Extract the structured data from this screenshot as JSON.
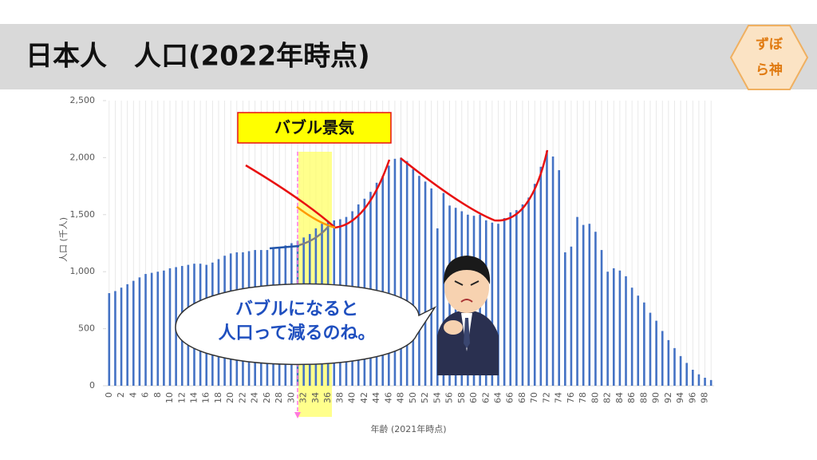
{
  "header": {
    "title": "日本人　人口(2022年時点)",
    "logo": [
      "ずぼ",
      "ら神"
    ]
  },
  "chart_data": {
    "type": "bar",
    "color": "#4472c4",
    "categories": [
      "0",
      null,
      "2",
      null,
      "4",
      null,
      "6",
      null,
      "8",
      null,
      "10",
      null,
      "12",
      null,
      "14",
      null,
      "16",
      null,
      "18",
      null,
      "20",
      null,
      "22",
      null,
      "24",
      null,
      "26",
      null,
      "28",
      null,
      "30",
      null,
      "32",
      null,
      "34",
      null,
      "36",
      null,
      "38",
      null,
      "40",
      null,
      "42",
      null,
      "44",
      null,
      "46",
      null,
      "48",
      null,
      "50",
      null,
      "52",
      null,
      "54",
      null,
      "56",
      null,
      "58",
      null,
      "60",
      null,
      "62",
      null,
      "64",
      null,
      "66",
      null,
      "68",
      null,
      "70",
      null,
      "72",
      null,
      "74",
      null,
      "76",
      null,
      "78",
      null,
      "80",
      null,
      "82",
      null,
      "84",
      null,
      "86",
      null,
      "88",
      null,
      "90",
      null,
      "92",
      null,
      "94",
      null,
      "96",
      null,
      "98",
      null
    ],
    "values": [
      812,
      830,
      860,
      890,
      920,
      950,
      980,
      990,
      1000,
      1010,
      1030,
      1040,
      1050,
      1060,
      1070,
      1070,
      1060,
      1080,
      1110,
      1140,
      1160,
      1170,
      1170,
      1180,
      1190,
      1190,
      1190,
      1200,
      1210,
      1230,
      1250,
      1270,
      1300,
      1330,
      1380,
      1420,
      1440,
      1450,
      1460,
      1480,
      1530,
      1590,
      1640,
      1700,
      1780,
      1840,
      1930,
      1990,
      2000,
      1970,
      1900,
      1840,
      1790,
      1730,
      1380,
      1690,
      1580,
      1560,
      1530,
      1500,
      1490,
      1500,
      1450,
      1430,
      1420,
      1470,
      1520,
      1540,
      1590,
      1650,
      1770,
      1920,
      2060,
      2010,
      1890,
      1170,
      1220,
      1480,
      1410,
      1420,
      1350,
      1190,
      1000,
      1030,
      1010,
      960,
      860,
      790,
      730,
      640,
      570,
      480,
      400,
      330,
      260,
      200,
      140,
      100,
      70,
      50
    ],
    "ylim": [
      0,
      2500
    ],
    "yticks": [
      0,
      500,
      {
        "value": 1000,
        "label": "1,000"
      },
      {
        "value": 1500,
        "label": "1,500"
      },
      {
        "value": 2000,
        "label": "2,000"
      },
      {
        "value": 2500,
        "label": "2,500"
      }
    ],
    "ylabel": "人口 (千人)",
    "xlabel": "年齢 (2021年時点)",
    "annotation": "バブル景気",
    "bubble": [
      "バブルになると",
      "人口って減るのね。"
    ]
  }
}
